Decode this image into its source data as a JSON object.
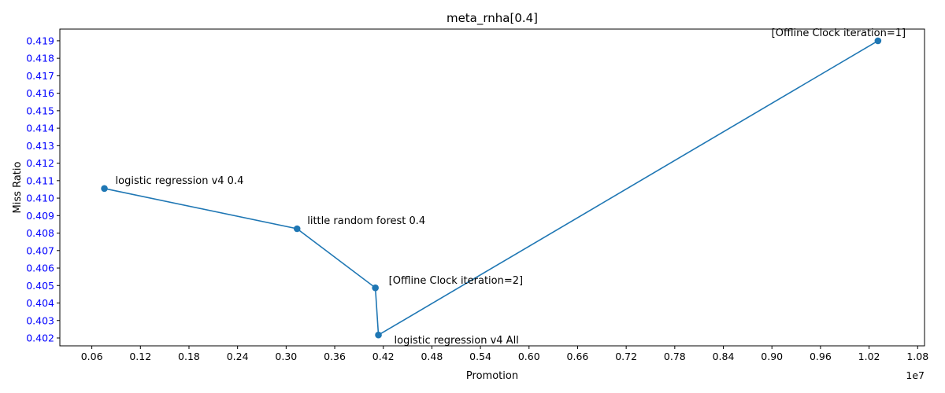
{
  "chart_data": {
    "type": "line",
    "title": "meta_rnha[0.4]",
    "xlabel": "Promotion",
    "ylabel": "Miss Ratio",
    "x_offset_label": "1e7",
    "xlim": [
      0.0205,
      1.0885
    ],
    "ylim": [
      0.40155,
      0.41967
    ],
    "xticks": [
      0.06,
      0.12,
      0.18,
      0.24,
      0.3,
      0.36,
      0.42,
      0.48,
      0.54,
      0.6,
      0.66,
      0.72,
      0.78,
      0.84,
      0.9,
      0.96,
      1.02,
      1.08
    ],
    "xtick_labels": [
      "0.06",
      "0.12",
      "0.18",
      "0.24",
      "0.30",
      "0.36",
      "0.42",
      "0.48",
      "0.54",
      "0.60",
      "0.66",
      "0.72",
      "0.78",
      "0.84",
      "0.90",
      "0.96",
      "1.02",
      "1.08"
    ],
    "yticks": [
      0.402,
      0.403,
      0.404,
      0.405,
      0.406,
      0.407,
      0.408,
      0.409,
      0.41,
      0.411,
      0.412,
      0.413,
      0.414,
      0.415,
      0.416,
      0.417,
      0.418,
      0.419
    ],
    "ytick_labels": [
      "0.402",
      "0.403",
      "0.404",
      "0.405",
      "0.406",
      "0.407",
      "0.408",
      "0.409",
      "0.410",
      "0.411",
      "0.412",
      "0.413",
      "0.414",
      "0.415",
      "0.416",
      "0.417",
      "0.418",
      "0.419"
    ],
    "grid": false,
    "series": [
      {
        "color": "#1f77b4",
        "ytick_color": "#0000ff",
        "points": [
          {
            "x": 0.0755,
            "y": 0.41055,
            "label": "logistic regression v4 0.4"
          },
          {
            "x": 0.3135,
            "y": 0.40825,
            "label": "little random forest 0.4"
          },
          {
            "x": 0.4102,
            "y": 0.40487,
            "label": "[Offline Clock iteration=2]"
          },
          {
            "x": 0.414,
            "y": 0.40217,
            "label": "logistic regression v4 All"
          },
          {
            "x": 1.031,
            "y": 0.419,
            "label": "[Offline Clock iteration=1]"
          }
        ]
      }
    ]
  }
}
